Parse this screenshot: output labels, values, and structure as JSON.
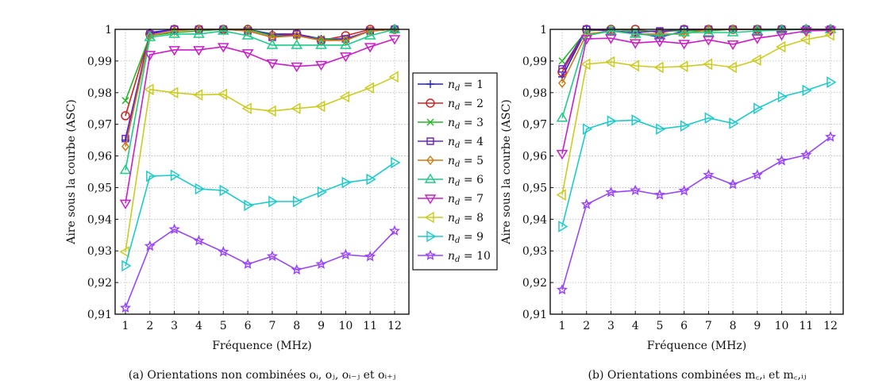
{
  "chart_data": [
    {
      "type": "line",
      "caption": "(a) Orientations non combinées oᵢ, oⱼ, oᵢ₋ⱼ et oᵢ₊ⱼ",
      "xlabel": "Fréquence (MHz)",
      "ylabel": "Aire sous la courbe (ASC)",
      "x": [
        1,
        2,
        3,
        4,
        5,
        6,
        7,
        8,
        9,
        10,
        11,
        12
      ],
      "xticks": [
        "1",
        "2",
        "3",
        "4",
        "5",
        "6",
        "7",
        "8",
        "9",
        "10",
        "11",
        "12"
      ],
      "yticks": [
        "0,91",
        "0,92",
        "0,93",
        "0,94",
        "0,95",
        "0,96",
        "0,97",
        "0,98",
        "0,99",
        "1"
      ],
      "ylim": [
        0.91,
        1.0
      ],
      "grid": true,
      "legend_position": "right",
      "series": [
        {
          "name": "n_d = 1",
          "color": "#1f1fe0",
          "marker": "plus",
          "values": [
            0.965,
            0.999,
            1,
            1,
            1,
            1,
            0.9985,
            0.9985,
            0.997,
            0.997,
            0.9995,
            1
          ]
        },
        {
          "name": "n_d = 2",
          "color": "#d42020",
          "marker": "circle",
          "values": [
            0.9727,
            0.9985,
            1,
            1,
            1,
            1,
            0.998,
            0.9985,
            0.9965,
            0.998,
            1,
            1
          ]
        },
        {
          "name": "n_d = 3",
          "color": "#22b822",
          "marker": "x",
          "values": [
            0.9775,
            0.998,
            0.999,
            0.9995,
            1,
            1,
            0.998,
            0.998,
            0.997,
            0.997,
            0.9995,
            1
          ]
        },
        {
          "name": "n_d = 4",
          "color": "#6a22cc",
          "marker": "square",
          "values": [
            0.9655,
            0.9985,
            1,
            1,
            1,
            0.9995,
            0.9975,
            0.9985,
            0.9965,
            0.997,
            0.9995,
            1
          ]
        },
        {
          "name": "n_d = 5",
          "color": "#d07a10",
          "marker": "diamond",
          "values": [
            0.963,
            0.998,
            0.9995,
            1,
            1,
            0.9995,
            0.9975,
            0.998,
            0.9965,
            0.9965,
            0.9995,
            1
          ]
        },
        {
          "name": "n_d = 6",
          "color": "#1ccc88",
          "marker": "triangle-up",
          "values": [
            0.9555,
            0.9975,
            0.9985,
            0.9985,
            0.9995,
            0.998,
            0.995,
            0.995,
            0.995,
            0.995,
            0.998,
            1
          ]
        },
        {
          "name": "n_d = 7",
          "color": "#cc1ccc",
          "marker": "triangle-down",
          "values": [
            0.945,
            0.992,
            0.9935,
            0.9935,
            0.9945,
            0.9925,
            0.9893,
            0.9883,
            0.9888,
            0.9915,
            0.9945,
            0.997
          ]
        },
        {
          "name": "n_d = 8",
          "color": "#cccc1c",
          "marker": "triangle-left",
          "values": [
            0.9297,
            0.981,
            0.98,
            0.9793,
            0.9795,
            0.975,
            0.9742,
            0.975,
            0.9757,
            0.9787,
            0.9815,
            0.985
          ]
        },
        {
          "name": "n_d = 9",
          "color": "#1ccccc",
          "marker": "triangle-right",
          "values": [
            0.9253,
            0.9536,
            0.9539,
            0.9496,
            0.9491,
            0.9444,
            0.9456,
            0.9456,
            0.9486,
            0.9516,
            0.9526,
            0.9579
          ]
        },
        {
          "name": "n_d = 10",
          "color": "#9944ff",
          "marker": "star",
          "values": [
            0.912,
            0.9315,
            0.9368,
            0.9332,
            0.9297,
            0.9258,
            0.9283,
            0.924,
            0.9258,
            0.9288,
            0.9282,
            0.9363
          ]
        }
      ]
    },
    {
      "type": "line",
      "caption": "(b) Orientations combinées m꜀,ᵢ et m꜀,ᵢⱼ",
      "xlabel": "Fréquence (MHz)",
      "ylabel": "Aire sous la courbe (ASC)",
      "x": [
        1,
        2,
        3,
        4,
        5,
        6,
        7,
        8,
        9,
        10,
        11,
        12
      ],
      "xticks": [
        "1",
        "2",
        "3",
        "4",
        "5",
        "6",
        "7",
        "8",
        "9",
        "10",
        "11",
        "12"
      ],
      "yticks": [
        "0,91",
        "0,92",
        "0,93",
        "0,94",
        "0,95",
        "0,96",
        "0,97",
        "0,98",
        "0,99",
        "1"
      ],
      "ylim": [
        0.91,
        1.0
      ],
      "grid": true,
      "series": [
        {
          "name": "n_d = 1",
          "color": "#1f1fe0",
          "marker": "plus",
          "values": [
            0.985,
            1,
            0.9995,
            0.999,
            0.9975,
            0.9995,
            1,
            1,
            1,
            1,
            1,
            1
          ]
        },
        {
          "name": "n_d = 2",
          "color": "#d42020",
          "marker": "circle",
          "values": [
            0.9865,
            1,
            1,
            1,
            0.999,
            1,
            1,
            1,
            1,
            1,
            1,
            1
          ]
        },
        {
          "name": "n_d = 3",
          "color": "#22b822",
          "marker": "x",
          "values": [
            0.99,
            0.9995,
            1,
            0.9995,
            0.9995,
            0.9995,
            0.9995,
            1,
            1,
            1,
            1,
            1
          ]
        },
        {
          "name": "n_d = 4",
          "color": "#6a22cc",
          "marker": "square",
          "values": [
            0.9875,
            1,
            0.9995,
            0.999,
            0.9995,
            1,
            1,
            1,
            1,
            1,
            1,
            1
          ]
        },
        {
          "name": "n_d = 5",
          "color": "#d07a10",
          "marker": "diamond",
          "values": [
            0.983,
            0.9985,
            0.9995,
            0.9985,
            0.9985,
            0.9985,
            1,
            1,
            1,
            1,
            1,
            1
          ]
        },
        {
          "name": "n_d = 6",
          "color": "#1ccc88",
          "marker": "triangle-up",
          "values": [
            0.972,
            0.998,
            0.9995,
            0.9985,
            0.998,
            0.999,
            0.999,
            0.999,
            0.9995,
            0.9998,
            1,
            1
          ]
        },
        {
          "name": "n_d = 7",
          "color": "#cc1ccc",
          "marker": "triangle-down",
          "values": [
            0.9607,
            0.997,
            0.9972,
            0.9957,
            0.9962,
            0.9955,
            0.9967,
            0.9953,
            0.9972,
            0.9983,
            0.9995,
            0.9997
          ]
        },
        {
          "name": "n_d = 8",
          "color": "#cccc1c",
          "marker": "triangle-left",
          "values": [
            0.9477,
            0.989,
            0.9897,
            0.9885,
            0.988,
            0.9883,
            0.989,
            0.988,
            0.9903,
            0.9945,
            0.9968,
            0.9982
          ]
        },
        {
          "name": "n_d = 9",
          "color": "#1ccccc",
          "marker": "triangle-right",
          "values": [
            0.9377,
            0.9685,
            0.971,
            0.9713,
            0.9685,
            0.9695,
            0.972,
            0.9703,
            0.975,
            0.9787,
            0.9807,
            0.9833
          ]
        },
        {
          "name": "n_d = 10",
          "color": "#9944ff",
          "marker": "star",
          "values": [
            0.9177,
            0.9447,
            0.9485,
            0.9491,
            0.9477,
            0.949,
            0.954,
            0.951,
            0.954,
            0.9585,
            0.9603,
            0.966
          ]
        }
      ]
    }
  ]
}
